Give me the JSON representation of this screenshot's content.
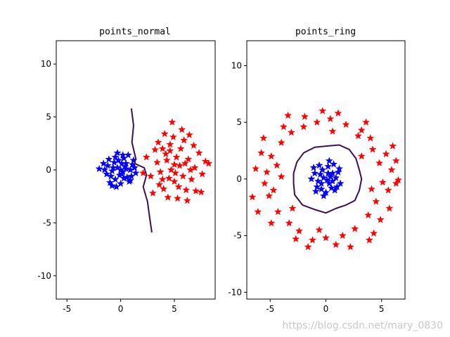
{
  "watermark": "https://blog.csdn.net/mary_0830",
  "colors": {
    "class_a": "#0000ff",
    "class_b": "#ff0000",
    "boundary": "#3b0f56",
    "axes": "#000000"
  },
  "chart_data": [
    {
      "type": "scatter",
      "title": "points_normal",
      "xlim": [
        -6,
        8.8
      ],
      "ylim": [
        -12.2,
        12.2
      ],
      "xticks": [
        -5,
        0,
        5
      ],
      "yticks": [
        -10,
        -5,
        0,
        5,
        10
      ],
      "marker": "star",
      "series": [
        {
          "color": "#0000ff",
          "points": [
            [
              -0.3,
              0.2
            ],
            [
              0.1,
              -0.4
            ],
            [
              0.5,
              0.6
            ],
            [
              -0.8,
              -0.1
            ],
            [
              0.3,
              1.1
            ],
            [
              -0.5,
              -0.9
            ],
            [
              0.9,
              0.0
            ],
            [
              -1.2,
              0.4
            ],
            [
              0.0,
              -1.3
            ],
            [
              0.6,
              -0.7
            ],
            [
              -0.2,
              0.9
            ],
            [
              1.1,
              0.5
            ],
            [
              -0.9,
              -0.6
            ],
            [
              0.4,
              0.3
            ],
            [
              -0.6,
              0.7
            ],
            [
              0.2,
              -0.2
            ],
            [
              0.8,
              -1.1
            ],
            [
              -1.5,
              0.0
            ],
            [
              -2.0,
              0.1
            ],
            [
              -0.3,
              1.6
            ],
            [
              1.4,
              -0.3
            ],
            [
              -1.0,
              -1.2
            ],
            [
              0.7,
              1.4
            ],
            [
              -0.4,
              -1.6
            ],
            [
              1.2,
              0.9
            ],
            [
              0.0,
              0.0
            ],
            [
              -0.7,
              0.2
            ],
            [
              0.3,
              -0.8
            ],
            [
              -1.1,
              1.0
            ],
            [
              1.0,
              -0.6
            ],
            [
              -0.1,
              -0.5
            ],
            [
              0.5,
              0.1
            ],
            [
              -1.3,
              -0.4
            ],
            [
              0.2,
              1.4
            ],
            [
              -0.8,
              -1.5
            ],
            [
              1.3,
              0.2
            ],
            [
              -0.5,
              1.2
            ],
            [
              0.9,
              -1.0
            ],
            [
              -1.6,
              0.6
            ],
            [
              0.1,
              0.6
            ]
          ]
        },
        {
          "color": "#ff0000",
          "points": [
            [
              5.0,
              0.5
            ],
            [
              4.2,
              1.5
            ],
            [
              5.8,
              -0.6
            ],
            [
              3.9,
              -0.9
            ],
            [
              6.3,
              1.0
            ],
            [
              4.6,
              2.4
            ],
            [
              5.4,
              -1.6
            ],
            [
              3.4,
              0.7
            ],
            [
              6.9,
              0.2
            ],
            [
              4.9,
              3.1
            ],
            [
              5.6,
              2.0
            ],
            [
              4.0,
              -1.8
            ],
            [
              6.1,
              -1.9
            ],
            [
              3.2,
              1.9
            ],
            [
              7.3,
              1.6
            ],
            [
              4.7,
              0.0
            ],
            [
              5.2,
              1.2
            ],
            [
              3.7,
              -0.2
            ],
            [
              6.6,
              -0.9
            ],
            [
              4.4,
              -2.6
            ],
            [
              5.9,
              2.8
            ],
            [
              2.8,
              -0.6
            ],
            [
              7.6,
              -0.4
            ],
            [
              4.1,
              3.4
            ],
            [
              5.3,
              -2.7
            ],
            [
              6.0,
              0.6
            ],
            [
              3.5,
              2.6
            ],
            [
              6.8,
              2.3
            ],
            [
              4.5,
              -0.8
            ],
            [
              5.7,
              3.8
            ],
            [
              2.4,
              1.2
            ],
            [
              7.0,
              -2.0
            ],
            [
              4.8,
              4.5
            ],
            [
              3.0,
              -2.2
            ],
            [
              6.4,
              3.3
            ],
            [
              5.1,
              -0.3
            ],
            [
              4.3,
              0.9
            ],
            [
              7.9,
              0.8
            ],
            [
              5.5,
              0.4
            ],
            [
              3.6,
              -1.4
            ],
            [
              2.1,
              -0.3
            ],
            [
              6.2,
              -2.9
            ],
            [
              4.6,
              1.8
            ],
            [
              5.0,
              -1.1
            ],
            [
              7.5,
              -2.1
            ],
            [
              8.2,
              0.6
            ],
            [
              3.9,
              2.0
            ],
            [
              6.5,
              0.0
            ]
          ]
        }
      ],
      "boundary": [
        [
          1.0,
          5.8
        ],
        [
          1.2,
          4.2
        ],
        [
          1.05,
          2.6
        ],
        [
          1.4,
          1.1
        ],
        [
          1.3,
          0.6
        ],
        [
          2.2,
          0.2
        ],
        [
          2.4,
          -0.5
        ],
        [
          2.1,
          -1.6
        ],
        [
          2.5,
          -3.0
        ],
        [
          2.7,
          -4.5
        ],
        [
          2.9,
          -5.9
        ]
      ]
    },
    {
      "type": "scatter",
      "title": "points_ring",
      "xlim": [
        -7.1,
        7.1
      ],
      "ylim": [
        -10.6,
        12.2
      ],
      "xticks": [
        -5,
        0,
        5
      ],
      "yticks": [
        -10,
        -5,
        0,
        5,
        10
      ],
      "marker": "star",
      "series": [
        {
          "color": "#0000ff",
          "points": [
            [
              -0.2,
              0.1
            ],
            [
              0.3,
              -0.4
            ],
            [
              0.6,
              0.5
            ],
            [
              -0.7,
              -0.2
            ],
            [
              0.2,
              1.1
            ],
            [
              -0.4,
              -0.9
            ],
            [
              0.9,
              0.1
            ],
            [
              -1.0,
              0.5
            ],
            [
              0.0,
              -1.2
            ],
            [
              0.5,
              -0.8
            ],
            [
              -0.3,
              0.8
            ],
            [
              1.1,
              0.6
            ],
            [
              -0.8,
              -0.7
            ],
            [
              0.4,
              0.2
            ],
            [
              -0.5,
              0.4
            ],
            [
              0.1,
              -0.1
            ],
            [
              0.8,
              -1.0
            ],
            [
              -1.3,
              0.0
            ],
            [
              0.3,
              1.6
            ],
            [
              1.3,
              -0.4
            ],
            [
              -0.9,
              -1.1
            ],
            [
              0.7,
              1.3
            ],
            [
              -0.2,
              -1.5
            ],
            [
              1.2,
              0.9
            ],
            [
              -0.6,
              1.2
            ],
            [
              0.2,
              0.5
            ],
            [
              -1.1,
              1.0
            ],
            [
              1.0,
              -0.7
            ],
            [
              0.6,
              -0.2
            ],
            [
              -0.4,
              -0.4
            ]
          ]
        },
        {
          "color": "#ff0000",
          "points": [
            [
              5.1,
              -0.3
            ],
            [
              4.8,
              1.4
            ],
            [
              5.6,
              -1.0
            ],
            [
              4.5,
              -2.0
            ],
            [
              5.9,
              0.8
            ],
            [
              4.2,
              2.6
            ],
            [
              3.8,
              -3.2
            ],
            [
              4.0,
              3.6
            ],
            [
              6.3,
              -0.4
            ],
            [
              3.2,
              4.3
            ],
            [
              2.6,
              -4.4
            ],
            [
              1.8,
              4.8
            ],
            [
              1.5,
              -5.0
            ],
            [
              0.4,
              5.3
            ],
            [
              0.0,
              -5.2
            ],
            [
              -0.8,
              5.0
            ],
            [
              -1.2,
              -5.4
            ],
            [
              -2.0,
              4.6
            ],
            [
              -2.4,
              -4.6
            ],
            [
              -3.1,
              4.1
            ],
            [
              -3.3,
              -3.9
            ],
            [
              -4.0,
              3.2
            ],
            [
              -4.3,
              -2.9
            ],
            [
              -4.9,
              2.0
            ],
            [
              -5.1,
              -1.5
            ],
            [
              -5.3,
              0.6
            ],
            [
              -5.5,
              -0.4
            ],
            [
              -4.4,
              1.2
            ],
            [
              -4.7,
              -1.0
            ],
            [
              5.4,
              2.2
            ],
            [
              4.9,
              -3.6
            ],
            [
              -5.8,
              2.3
            ],
            [
              -6.3,
              0.9
            ],
            [
              6.5,
              -0.1
            ],
            [
              2.9,
              3.8
            ],
            [
              -2.7,
              -5.3
            ],
            [
              0.9,
              -5.8
            ],
            [
              -1.9,
              5.5
            ],
            [
              3.6,
              5.0
            ],
            [
              -3.8,
              4.6
            ],
            [
              4.3,
              -4.8
            ],
            [
              -4.9,
              -3.9
            ],
            [
              2.2,
              -6.0
            ],
            [
              -0.3,
              6.0
            ],
            [
              6.0,
              2.9
            ],
            [
              -6.6,
              -1.6
            ],
            [
              5.7,
              -2.6
            ],
            [
              -5.6,
              3.6
            ],
            [
              1.1,
              5.8
            ],
            [
              -1.6,
              -6.0
            ],
            [
              3.9,
              -5.4
            ],
            [
              -3.4,
              5.6
            ],
            [
              6.3,
              1.6
            ],
            [
              -6.1,
              -2.9
            ],
            [
              0.6,
              4.2
            ],
            [
              -0.6,
              -4.5
            ],
            [
              4.1,
              -0.9
            ],
            [
              -4.0,
              0.2
            ],
            [
              3.2,
              2.0
            ],
            [
              -3.0,
              -2.6
            ]
          ]
        }
      ],
      "boundary": [
        [
          0.0,
          2.9
        ],
        [
          1.2,
          3.0
        ],
        [
          2.1,
          2.6
        ],
        [
          2.7,
          1.8
        ],
        [
          3.0,
          0.8
        ],
        [
          3.2,
          0.0
        ],
        [
          3.0,
          -1.0
        ],
        [
          2.6,
          -1.9
        ],
        [
          1.8,
          -2.3
        ],
        [
          0.9,
          -2.6
        ],
        [
          0.0,
          -3.0
        ],
        [
          -1.0,
          -2.7
        ],
        [
          -2.1,
          -2.3
        ],
        [
          -2.8,
          -1.4
        ],
        [
          -2.9,
          -0.4
        ],
        [
          -2.9,
          0.5
        ],
        [
          -2.6,
          1.5
        ],
        [
          -2.0,
          2.3
        ],
        [
          -1.0,
          2.8
        ],
        [
          0.0,
          2.9
        ]
      ]
    }
  ]
}
